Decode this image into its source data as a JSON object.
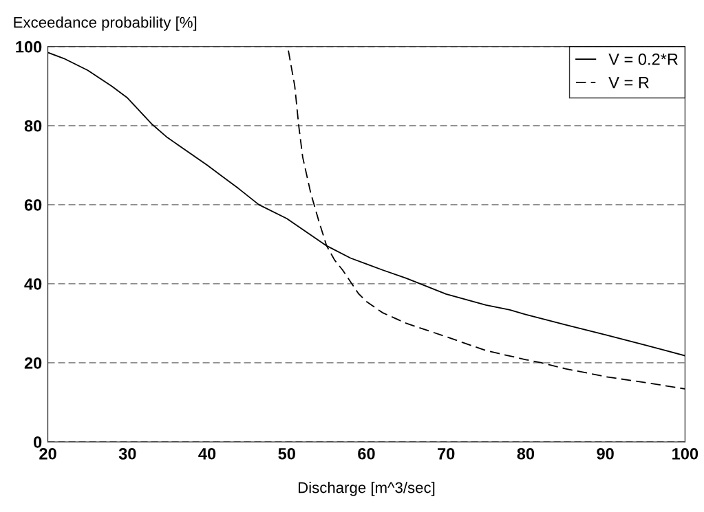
{
  "chart_data": {
    "type": "line",
    "ylabel": "Exceedance probability [%]",
    "xlabel": "Discharge [m^3/sec]",
    "xlim": [
      20,
      100
    ],
    "xticks": [
      20,
      30,
      40,
      50,
      60,
      70,
      80,
      90,
      100
    ],
    "ylim": [
      0,
      100
    ],
    "yticks": [
      0,
      20,
      40,
      60,
      80,
      100
    ],
    "grid": "y",
    "legend": "top right",
    "marker": "none",
    "series": [
      {
        "name": "V = 0.2*R",
        "color": "#000000",
        "line_style": "solid",
        "x": [
          20,
          22,
          25,
          28,
          30,
          33,
          35,
          40,
          44,
          46.5,
          50,
          55,
          58,
          60,
          62,
          65,
          70,
          75,
          78,
          80,
          85,
          90,
          95,
          100
        ],
        "values": [
          98.5,
          97,
          94,
          90,
          87,
          80.5,
          77,
          70,
          64,
          60,
          56.5,
          49.6,
          46.5,
          45,
          43.5,
          41.4,
          37.4,
          34.6,
          33.4,
          32.2,
          29.6,
          27.1,
          24.5,
          21.8
        ]
      },
      {
        "name": "V = R",
        "color": "#000000",
        "line_style": "dashed",
        "x": [
          50.2,
          51,
          51.5,
          52,
          53,
          54,
          55,
          56,
          57,
          58,
          59,
          60,
          62,
          65,
          70,
          75,
          80,
          82,
          85,
          90,
          95,
          100
        ],
        "values": [
          99,
          90,
          80,
          72,
          63,
          56,
          49.6,
          46,
          43.5,
          40.5,
          37.5,
          35.5,
          32.7,
          30,
          26.6,
          23.1,
          20.8,
          20,
          18.5,
          16.5,
          15,
          13.4
        ]
      }
    ]
  }
}
